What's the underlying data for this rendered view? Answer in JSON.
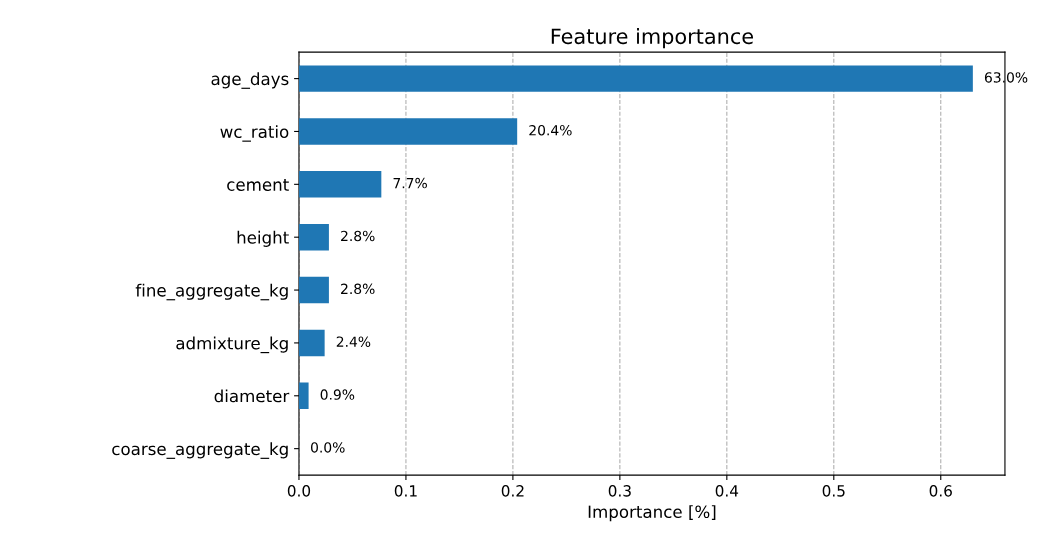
{
  "chart_data": {
    "type": "bar",
    "orientation": "horizontal",
    "title": "Feature importance",
    "xlabel": "Importance [%]",
    "categories": [
      "age_days",
      "wc_ratio",
      "cement",
      "height",
      "fine_aggregate_kg",
      "admixture_kg",
      "diameter",
      "coarse_aggregate_kg"
    ],
    "values": [
      0.63,
      0.204,
      0.077,
      0.028,
      0.028,
      0.024,
      0.009,
      0.0
    ],
    "value_labels": [
      "63.0%",
      "20.4%",
      "7.7%",
      "2.8%",
      "2.8%",
      "2.4%",
      "0.9%",
      "0.0%"
    ],
    "color": "#1f77b4",
    "xlim": [
      0,
      0.66
    ],
    "xticks": [
      {
        "value": 0,
        "label": "0.0"
      },
      0.1,
      0.2,
      0.3,
      0.4,
      0.5,
      0.6
    ],
    "grid": "x",
    "line_style": "dashed",
    "legend": false
  }
}
